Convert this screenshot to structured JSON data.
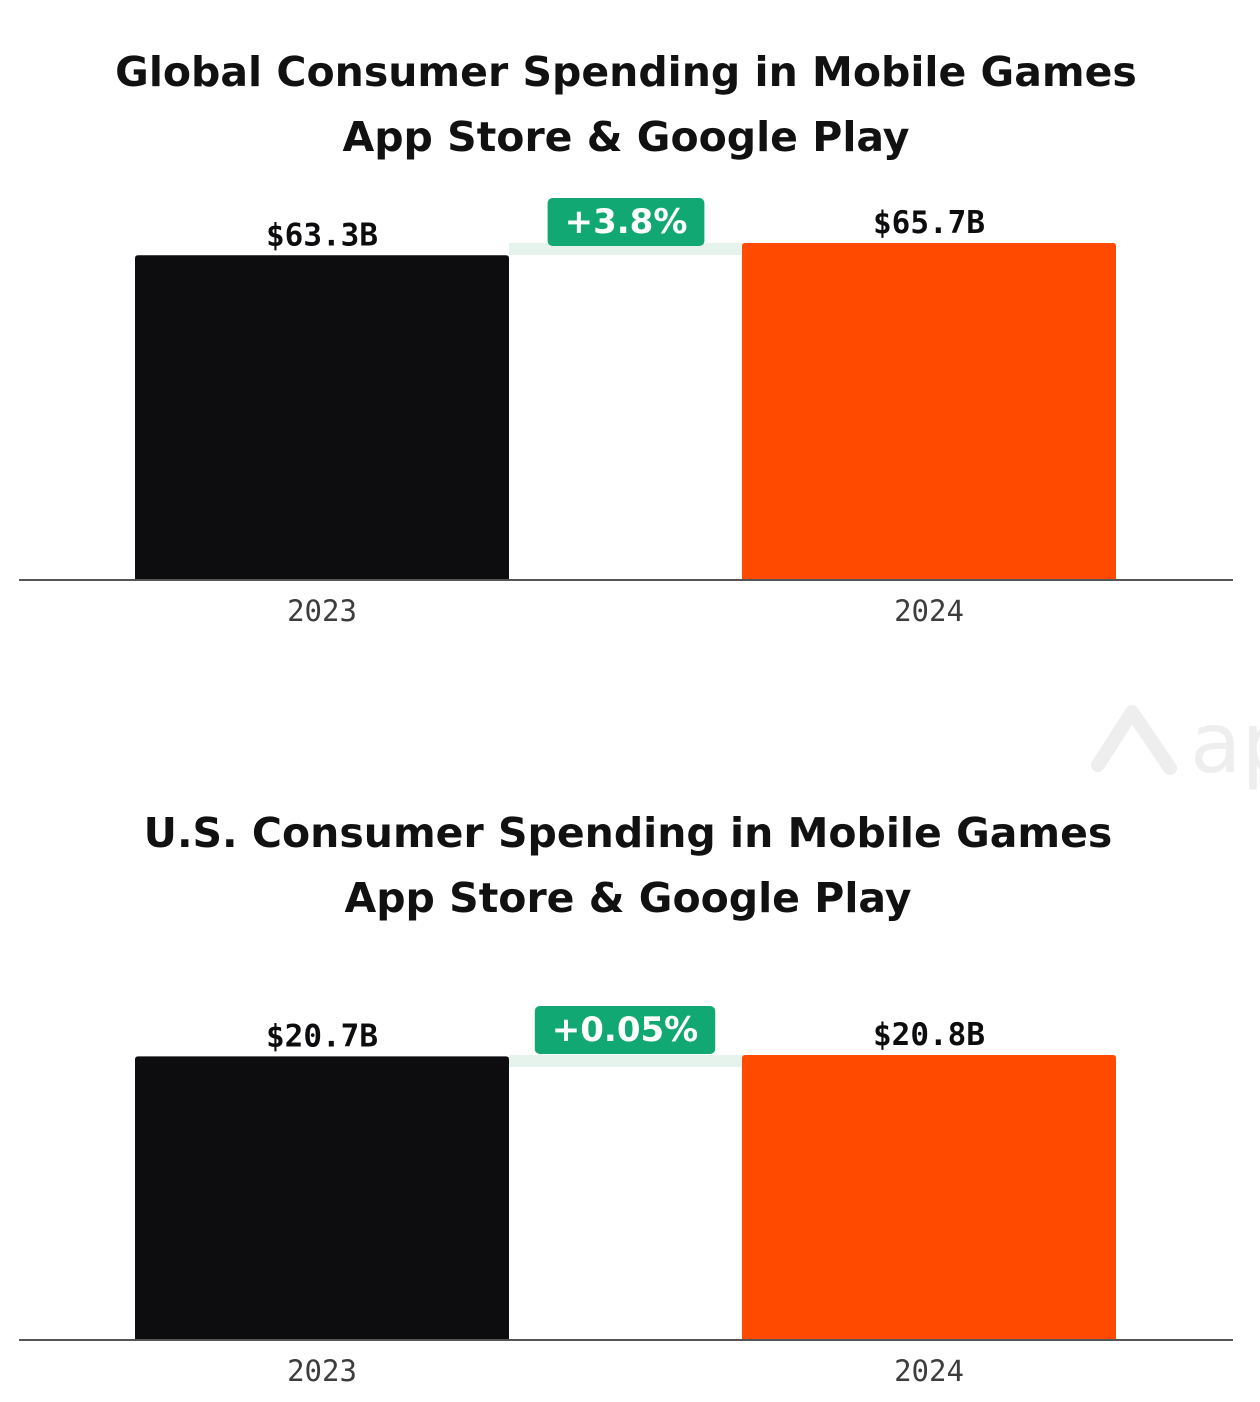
{
  "colors": {
    "bar_2023": "#0d0d0f",
    "bar_2024": "#ff4a00",
    "badge": "#12a873",
    "connector": "#e6f2ec",
    "axis": "#555555",
    "watermark": "#eeeeee"
  },
  "watermark": {
    "icon": "logo-chevron-icon",
    "text": "ap"
  },
  "chart_data": [
    {
      "type": "bar",
      "title": "Global Consumer Spending in Mobile Games",
      "subtitle": "App Store & Google Play",
      "categories": [
        "2023",
        "2024"
      ],
      "values": [
        63.3,
        65.7
      ],
      "value_labels": [
        "$63.3B",
        "$65.7B"
      ],
      "change_label": "+3.8%",
      "ylim": [
        0,
        65.7
      ],
      "grid": false
    },
    {
      "type": "bar",
      "title": "U.S. Consumer Spending in Mobile Games",
      "subtitle": "App Store & Google Play",
      "categories": [
        "2023",
        "2024"
      ],
      "values": [
        20.7,
        20.8
      ],
      "value_labels": [
        "$20.7B",
        "$20.8B"
      ],
      "change_label": "+0.05%",
      "ylim": [
        0,
        20.8
      ],
      "grid": false
    }
  ]
}
